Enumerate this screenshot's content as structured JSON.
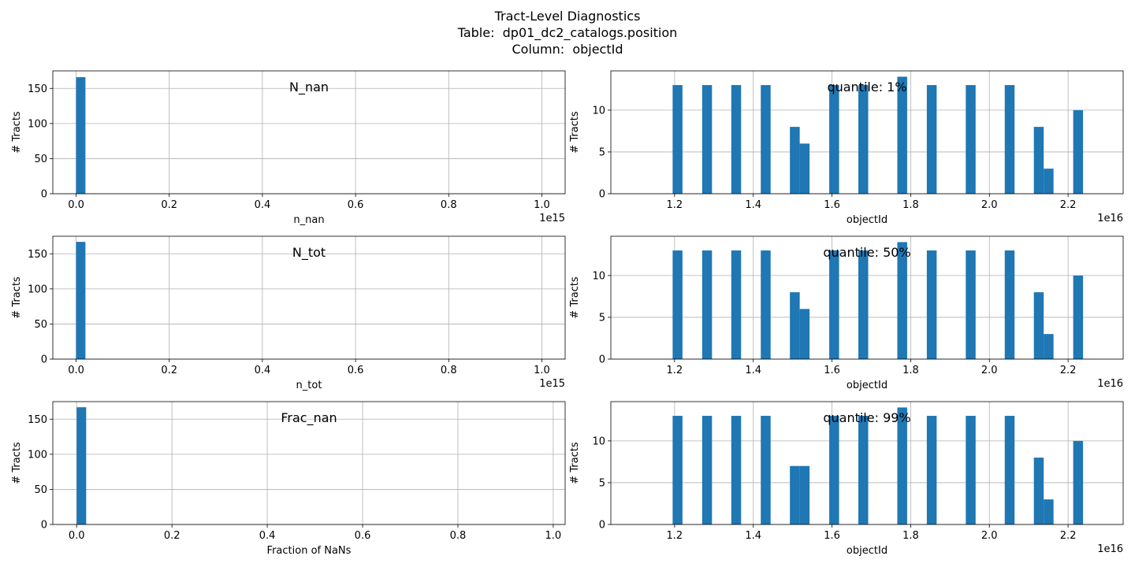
{
  "figure": {
    "title_lines": [
      "Tract-Level Diagnostics",
      "Table:  dp01_dc2_catalogs.position",
      "Column:  objectId"
    ]
  },
  "chart_data": [
    {
      "type": "bar",
      "title": "N_nan",
      "xlabel": "n_nan",
      "ylabel": "# Tracts",
      "offset_text": "1e15",
      "xlim": [
        -0.05,
        1.05
      ],
      "ylim": [
        0,
        175
      ],
      "xticks": [
        0.0,
        0.2,
        0.4,
        0.6,
        0.8,
        1.0
      ],
      "xtick_labels": [
        "0.0",
        "0.2",
        "0.4",
        "0.6",
        "0.8",
        "1.0"
      ],
      "yticks": [
        0,
        50,
        100,
        150
      ],
      "ytick_labels": [
        "0",
        "50",
        "100",
        "150"
      ],
      "bins": [
        {
          "x0": 0.0,
          "x1": 0.02,
          "y": 166
        }
      ],
      "grid": true
    },
    {
      "type": "bar",
      "title": "quantile: 1%",
      "xlabel": "objectId",
      "ylabel": "# Tracts",
      "offset_text": "1e16",
      "xlim": [
        1.038,
        2.34
      ],
      "ylim": [
        0,
        14.7
      ],
      "xticks": [
        1.2,
        1.4,
        1.6,
        1.8,
        2.0,
        2.2
      ],
      "xtick_labels": [
        "1.2",
        "1.4",
        "1.6",
        "1.8",
        "2.0",
        "2.2"
      ],
      "yticks": [
        0,
        5,
        10
      ],
      "ytick_labels": [
        "0",
        "5",
        "10"
      ],
      "bins": [
        {
          "x0": 1.195,
          "x1": 1.22,
          "y": 13
        },
        {
          "x0": 1.27,
          "x1": 1.295,
          "y": 13
        },
        {
          "x0": 1.344,
          "x1": 1.369,
          "y": 13
        },
        {
          "x0": 1.419,
          "x1": 1.444,
          "y": 13
        },
        {
          "x0": 1.493,
          "x1": 1.518,
          "y": 8
        },
        {
          "x0": 1.518,
          "x1": 1.543,
          "y": 6
        },
        {
          "x0": 1.593,
          "x1": 1.618,
          "y": 13
        },
        {
          "x0": 1.667,
          "x1": 1.692,
          "y": 13
        },
        {
          "x0": 1.766,
          "x1": 1.791,
          "y": 14
        },
        {
          "x0": 1.841,
          "x1": 1.866,
          "y": 13
        },
        {
          "x0": 1.94,
          "x1": 1.965,
          "y": 13
        },
        {
          "x0": 2.039,
          "x1": 2.064,
          "y": 13
        },
        {
          "x0": 2.113,
          "x1": 2.138,
          "y": 8
        },
        {
          "x0": 2.138,
          "x1": 2.163,
          "y": 3
        },
        {
          "x0": 2.213,
          "x1": 2.238,
          "y": 10
        }
      ],
      "grid": true
    },
    {
      "type": "bar",
      "title": "N_tot",
      "xlabel": "n_tot",
      "ylabel": "# Tracts",
      "offset_text": "1e15",
      "xlim": [
        -0.05,
        1.05
      ],
      "ylim": [
        0,
        175
      ],
      "xticks": [
        0.0,
        0.2,
        0.4,
        0.6,
        0.8,
        1.0
      ],
      "xtick_labels": [
        "0.0",
        "0.2",
        "0.4",
        "0.6",
        "0.8",
        "1.0"
      ],
      "yticks": [
        0,
        50,
        100,
        150
      ],
      "ytick_labels": [
        "0",
        "50",
        "100",
        "150"
      ],
      "bins": [
        {
          "x0": 0.0,
          "x1": 0.02,
          "y": 167
        }
      ],
      "grid": true
    },
    {
      "type": "bar",
      "title": "quantile: 50%",
      "xlabel": "objectId",
      "ylabel": "# Tracts",
      "offset_text": "1e16",
      "xlim": [
        1.038,
        2.34
      ],
      "ylim": [
        0,
        14.7
      ],
      "xticks": [
        1.2,
        1.4,
        1.6,
        1.8,
        2.0,
        2.2
      ],
      "xtick_labels": [
        "1.2",
        "1.4",
        "1.6",
        "1.8",
        "2.0",
        "2.2"
      ],
      "yticks": [
        0,
        5,
        10
      ],
      "ytick_labels": [
        "0",
        "5",
        "10"
      ],
      "bins": [
        {
          "x0": 1.195,
          "x1": 1.22,
          "y": 13
        },
        {
          "x0": 1.27,
          "x1": 1.295,
          "y": 13
        },
        {
          "x0": 1.344,
          "x1": 1.369,
          "y": 13
        },
        {
          "x0": 1.419,
          "x1": 1.444,
          "y": 13
        },
        {
          "x0": 1.493,
          "x1": 1.518,
          "y": 8
        },
        {
          "x0": 1.518,
          "x1": 1.543,
          "y": 6
        },
        {
          "x0": 1.593,
          "x1": 1.618,
          "y": 13
        },
        {
          "x0": 1.667,
          "x1": 1.692,
          "y": 13
        },
        {
          "x0": 1.766,
          "x1": 1.791,
          "y": 14
        },
        {
          "x0": 1.841,
          "x1": 1.866,
          "y": 13
        },
        {
          "x0": 1.94,
          "x1": 1.965,
          "y": 13
        },
        {
          "x0": 2.039,
          "x1": 2.064,
          "y": 13
        },
        {
          "x0": 2.113,
          "x1": 2.138,
          "y": 8
        },
        {
          "x0": 2.138,
          "x1": 2.163,
          "y": 3
        },
        {
          "x0": 2.213,
          "x1": 2.238,
          "y": 10
        }
      ],
      "grid": true
    },
    {
      "type": "bar",
      "title": "Frac_nan",
      "xlabel": "Fraction of NaNs",
      "ylabel": "# Tracts",
      "offset_text": "",
      "xlim": [
        -0.05,
        1.025
      ],
      "ylim": [
        0,
        175
      ],
      "xticks": [
        0.0,
        0.2,
        0.4,
        0.6,
        0.8,
        1.0
      ],
      "xtick_labels": [
        "0.0",
        "0.2",
        "0.4",
        "0.6",
        "0.8",
        "1.0"
      ],
      "yticks": [
        0,
        50,
        100,
        150
      ],
      "ytick_labels": [
        "0",
        "50",
        "100",
        "150"
      ],
      "bins": [
        {
          "x0": 0.0,
          "x1": 0.02,
          "y": 167
        }
      ],
      "grid": true
    },
    {
      "type": "bar",
      "title": "quantile: 99%",
      "xlabel": "objectId",
      "ylabel": "# Tracts",
      "offset_text": "1e16",
      "xlim": [
        1.038,
        2.34
      ],
      "ylim": [
        0,
        14.7
      ],
      "xticks": [
        1.2,
        1.4,
        1.6,
        1.8,
        2.0,
        2.2
      ],
      "xtick_labels": [
        "1.2",
        "1.4",
        "1.6",
        "1.8",
        "2.0",
        "2.2"
      ],
      "yticks": [
        0,
        5,
        10
      ],
      "ytick_labels": [
        "0",
        "5",
        "10"
      ],
      "bins": [
        {
          "x0": 1.195,
          "x1": 1.22,
          "y": 13
        },
        {
          "x0": 1.27,
          "x1": 1.295,
          "y": 13
        },
        {
          "x0": 1.344,
          "x1": 1.369,
          "y": 13
        },
        {
          "x0": 1.419,
          "x1": 1.444,
          "y": 13
        },
        {
          "x0": 1.493,
          "x1": 1.518,
          "y": 7
        },
        {
          "x0": 1.518,
          "x1": 1.543,
          "y": 7
        },
        {
          "x0": 1.593,
          "x1": 1.618,
          "y": 13
        },
        {
          "x0": 1.667,
          "x1": 1.692,
          "y": 13
        },
        {
          "x0": 1.766,
          "x1": 1.791,
          "y": 14
        },
        {
          "x0": 1.841,
          "x1": 1.866,
          "y": 13
        },
        {
          "x0": 1.94,
          "x1": 1.965,
          "y": 13
        },
        {
          "x0": 2.039,
          "x1": 2.064,
          "y": 13
        },
        {
          "x0": 2.113,
          "x1": 2.138,
          "y": 8
        },
        {
          "x0": 2.138,
          "x1": 2.163,
          "y": 3
        },
        {
          "x0": 2.213,
          "x1": 2.238,
          "y": 10
        }
      ],
      "grid": true
    }
  ]
}
